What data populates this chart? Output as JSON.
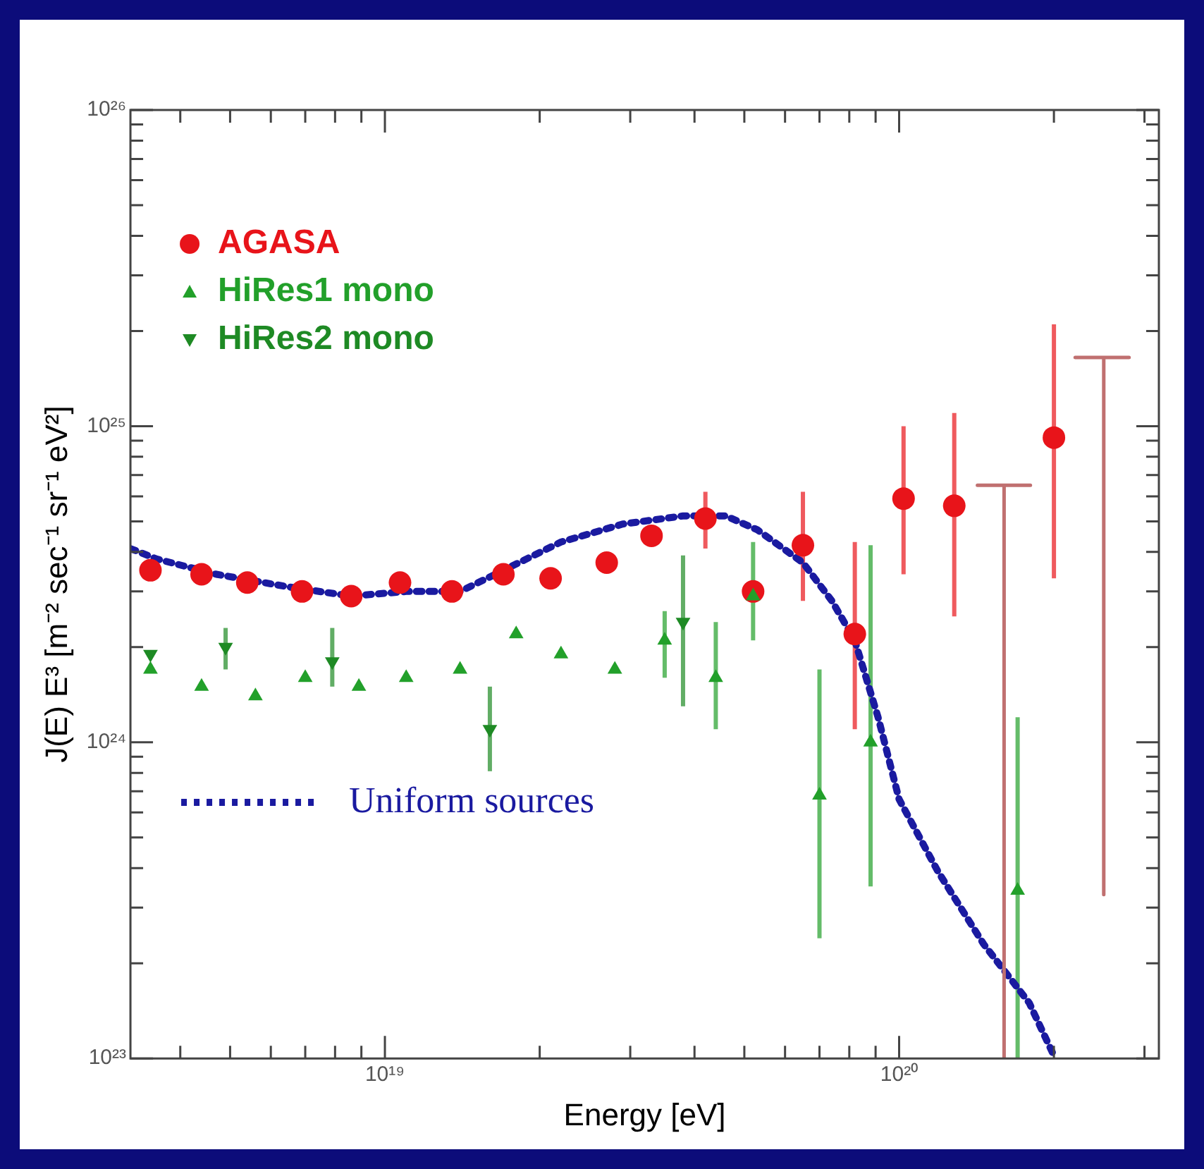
{
  "chart_data": {
    "type": "scatter",
    "xlabel": "Energy [eV]",
    "ylabel": "J(E) E³ [m⁻² sec⁻¹ sr⁻¹ eV²]",
    "log": "xy",
    "grid": false,
    "legend": "top left",
    "xlim": [
      3.2e+18,
      3.2e+20
    ],
    "ylim": [
      1e+23,
      1e+26
    ],
    "xticks": [
      {
        "value": 4e+18,
        "label": null
      },
      {
        "value": 5e+18,
        "label": null
      },
      {
        "value": 6e+18,
        "label": null
      },
      {
        "value": 7e+18,
        "label": null
      },
      {
        "value": 8e+18,
        "label": null
      },
      {
        "value": 9e+18,
        "label": null
      },
      {
        "value": 1e+19,
        "label": "10¹⁹"
      },
      {
        "value": 2e+19,
        "label": null
      },
      {
        "value": 3e+19,
        "label": null
      },
      {
        "value": 4e+19,
        "label": null
      },
      {
        "value": 5e+19,
        "label": null
      },
      {
        "value": 6e+19,
        "label": null
      },
      {
        "value": 7e+19,
        "label": null
      },
      {
        "value": 8e+19,
        "label": null
      },
      {
        "value": 9e+19,
        "label": null
      },
      {
        "value": 1e+20,
        "label": "10²⁰"
      },
      {
        "value": 2e+20,
        "label": null
      },
      {
        "value": 3e+20,
        "label": null
      }
    ],
    "yticks": [
      {
        "value": 1e+23,
        "label": "10²³"
      },
      {
        "value": 2e+23,
        "label": null
      },
      {
        "value": 3e+23,
        "label": null
      },
      {
        "value": 4e+23,
        "label": null
      },
      {
        "value": 5e+23,
        "label": null
      },
      {
        "value": 6e+23,
        "label": null
      },
      {
        "value": 7e+23,
        "label": null
      },
      {
        "value": 8e+23,
        "label": null
      },
      {
        "value": 9e+23,
        "label": null
      },
      {
        "value": 1e+24,
        "label": "10²⁴"
      },
      {
        "value": 2e+24,
        "label": null
      },
      {
        "value": 3e+24,
        "label": null
      },
      {
        "value": 4e+24,
        "label": null
      },
      {
        "value": 5e+24,
        "label": null
      },
      {
        "value": 6e+24,
        "label": null
      },
      {
        "value": 7e+24,
        "label": null
      },
      {
        "value": 8e+24,
        "label": null
      },
      {
        "value": 9e+24,
        "label": null
      },
      {
        "value": 1e+25,
        "label": "10²⁵"
      },
      {
        "value": 2e+25,
        "label": null
      },
      {
        "value": 3e+25,
        "label": null
      },
      {
        "value": 4e+25,
        "label": null
      },
      {
        "value": 5e+25,
        "label": null
      },
      {
        "value": 6e+25,
        "label": null
      },
      {
        "value": 7e+25,
        "label": null
      },
      {
        "value": 8e+25,
        "label": null
      },
      {
        "value": 9e+25,
        "label": null
      },
      {
        "value": 1e+26,
        "label": "10²⁶"
      }
    ],
    "series": [
      {
        "name": "AGASA",
        "marker": "circle",
        "color": "#e8141a",
        "x": [
          3.5e+18,
          4.4e+18,
          5.4e+18,
          6.9e+18,
          8.6e+18,
          1.07e+19,
          1.35e+19,
          1.7e+19,
          2.1e+19,
          2.7e+19,
          3.3e+19,
          4.2e+19,
          5.2e+19,
          6.5e+19,
          8.2e+19,
          1.02e+20,
          1.28e+20,
          2e+20
        ],
        "values": [
          3.5e+24,
          3.4e+24,
          3.2e+24,
          3e+24,
          2.9e+24,
          3.2e+24,
          3e+24,
          3.4e+24,
          3.3e+24,
          3.7e+24,
          4.5e+24,
          5.1e+24,
          3e+24,
          4.2e+24,
          2.2e+24,
          5.9e+24,
          5.6e+24,
          9.2e+24
        ],
        "errors": [
          null,
          null,
          null,
          null,
          null,
          null,
          null,
          null,
          null,
          null,
          null,
          [
            4.1e+24,
            6.2e+24
          ],
          null,
          [
            2.8e+24,
            6.2e+24
          ],
          [
            1.1e+24,
            4.3e+24
          ],
          [
            3.4e+24,
            1e+25
          ],
          [
            2.5e+24,
            1.1e+25
          ],
          [
            3.3e+24,
            2.1e+25
          ]
        ]
      },
      {
        "type": "line",
        "marker": "none",
        "line_style": "solid",
        "color": "#c07070",
        "x": [
          1.42e+20,
          1.8e+20,
          1.6e+20,
          1.6e+20
        ],
        "values": [
          6.5e+24,
          6.5e+24,
          6.5e+24,
          1e+23
        ]
      },
      {
        "type": "line",
        "marker": "none",
        "line_style": "solid",
        "color": "#c07070",
        "x": [
          2.2e+20,
          2.8e+20,
          2.5e+20,
          2.5e+20
        ],
        "values": [
          1.65e+25,
          1.65e+25,
          1.65e+25,
          3.3e+23
        ]
      },
      {
        "name": "HiRes1 mono",
        "marker": "triangle",
        "color": "#22a02a",
        "x": [
          3.5e+18,
          4.4e+18,
          5.6e+18,
          7e+18,
          8.9e+18,
          1.1e+19,
          1.4e+19,
          1.8e+19,
          2.2e+19,
          2.8e+19,
          3.5e+19,
          4.4e+19,
          5.2e+19,
          7e+19,
          8.8e+19,
          1.7e+20
        ],
        "values": [
          1.7e+24,
          1.5e+24,
          1.4e+24,
          1.6e+24,
          1.5e+24,
          1.6e+24,
          1.7e+24,
          2.2e+24,
          1.9e+24,
          1.7e+24,
          2.1e+24,
          1.6e+24,
          2.9e+24,
          6.8e+23,
          1e+24,
          3.4e+23
        ],
        "errors": [
          null,
          null,
          null,
          null,
          null,
          null,
          null,
          null,
          null,
          null,
          [
            1.6e+24,
            2.6e+24
          ],
          [
            1.1e+24,
            2.4e+24
          ],
          [
            2.1e+24,
            4.3e+24
          ],
          [
            2.4e+23,
            1.7e+24
          ],
          [
            3.5e+23,
            4.2e+24
          ],
          [
            1e+23,
            1.2e+24
          ]
        ]
      },
      {
        "name": "HiRes2 mono",
        "marker": "triangle-down",
        "color": "#1e8a24",
        "x": [
          3.5e+18,
          4.9e+18,
          7.9e+18,
          1.6e+19,
          3.8e+19
        ],
        "values": [
          1.9e+24,
          2e+24,
          1.8e+24,
          1.1e+24,
          2.4e+24
        ],
        "errors": [
          null,
          [
            1.7e+24,
            2.3e+24
          ],
          [
            1.5e+24,
            2.3e+24
          ],
          [
            8.1e+23,
            1.5e+24
          ],
          [
            1.3e+24,
            3.9e+24
          ]
        ]
      },
      {
        "name": "Uniform sources",
        "type": "line",
        "marker": "none",
        "line_style": "dotted",
        "color": "#1a1aa0",
        "x": [
          3.2e+18,
          3.6e+18,
          4.7e+18,
          6.5e+18,
          8.6e+18,
          1.1e+19,
          1.4e+19,
          1.7e+19,
          2.2e+19,
          2.9e+19,
          3.8e+19,
          4.6e+19,
          5.3e+19,
          6.5e+19,
          7.4e+19,
          8.2e+19,
          9.1e+19,
          1e+20,
          1.19e+20,
          1.46e+20,
          1.79e+20,
          2e+20
        ],
        "values": [
          4.1e+24,
          3.8e+24,
          3.4e+24,
          3.1e+24,
          2.9e+24,
          3e+24,
          3e+24,
          3.5e+24,
          4.3e+24,
          4.9e+24,
          5.2e+24,
          5.2e+24,
          4.7e+24,
          3.7e+24,
          2.8e+24,
          2.1e+24,
          1.2e+24,
          6.6e+23,
          3.9e+23,
          2.3e+23,
          1.5e+23,
          1.02e+23
        ]
      }
    ]
  }
}
